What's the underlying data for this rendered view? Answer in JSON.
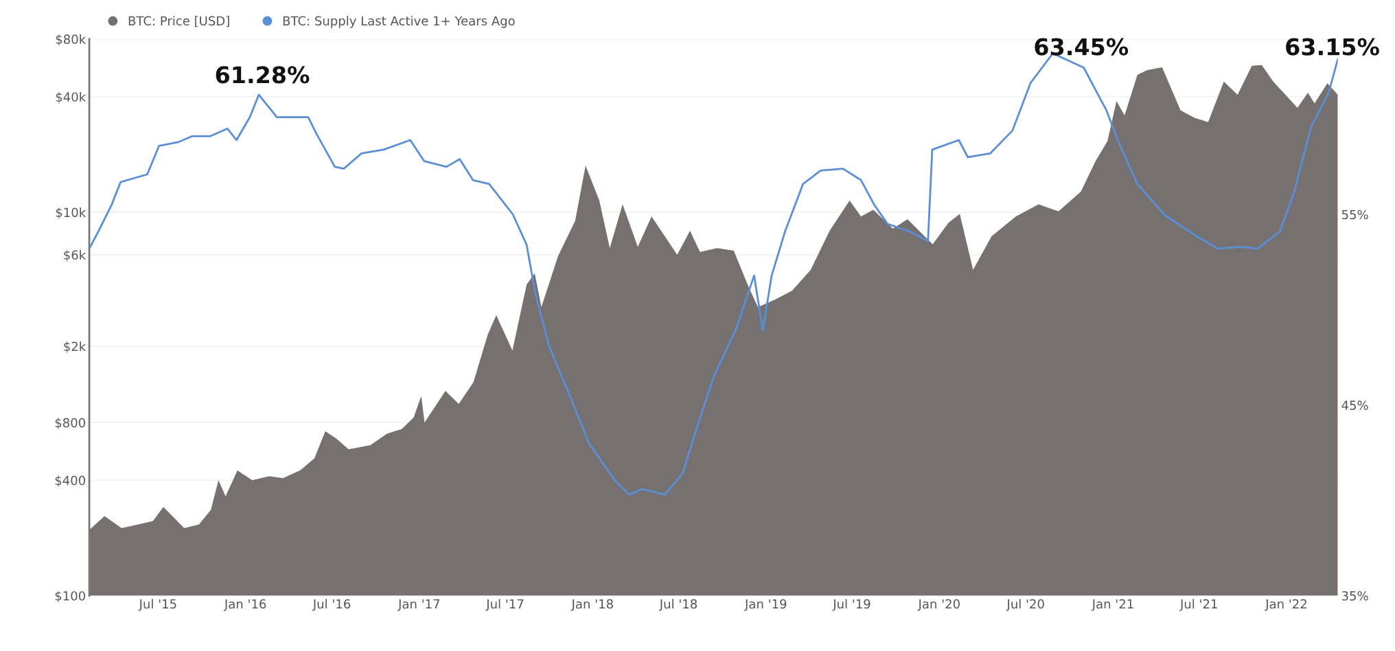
{
  "chart_data": {
    "type": "area",
    "xlim": [
      "2015-02-06",
      "2022-04-19"
    ],
    "xticks": [
      {
        "value": "2015-07-01",
        "label": "Jul '15"
      },
      {
        "value": "2016-01-01",
        "label": "Jan '16"
      },
      {
        "value": "2016-07-01",
        "label": "Jul '16"
      },
      {
        "value": "2017-01-01",
        "label": "Jan '17"
      },
      {
        "value": "2017-07-01",
        "label": "Jul '17"
      },
      {
        "value": "2018-01-01",
        "label": "Jan '18"
      },
      {
        "value": "2018-07-01",
        "label": "Jul '18"
      },
      {
        "value": "2019-01-01",
        "label": "Jan '19"
      },
      {
        "value": "2019-07-01",
        "label": "Jul '19"
      },
      {
        "value": "2020-01-01",
        "label": "Jan '20"
      },
      {
        "value": "2020-07-01",
        "label": "Jul '20"
      },
      {
        "value": "2021-01-01",
        "label": "Jan '21"
      },
      {
        "value": "2021-07-01",
        "label": "Jul '21"
      },
      {
        "value": "2022-01-01",
        "label": "Jan '22"
      }
    ],
    "log": "y",
    "ylim": [
      100,
      80000
    ],
    "yticks": [
      {
        "value": 100,
        "label": "$100"
      },
      {
        "value": 400,
        "label": "$400"
      },
      {
        "value": 800,
        "label": "$800"
      },
      {
        "value": 2000,
        "label": "$2k"
      },
      {
        "value": 6000,
        "label": "$6k"
      },
      {
        "value": 10000,
        "label": "$10k"
      },
      {
        "value": 40000,
        "label": "$40k"
      },
      {
        "value": 80000,
        "label": "$80k"
      }
    ],
    "y2lim": [
      35,
      64.2
    ],
    "y2ticks": [
      {
        "value": 35,
        "label": "35%"
      },
      {
        "value": 45,
        "label": "45%"
      },
      {
        "value": 55,
        "label": "55%"
      }
    ],
    "grid": "y",
    "legend": "top left",
    "series": [
      {
        "name": "BTC: Price [USD]",
        "color": "#767170",
        "x": [
          "2015-02-06",
          "2015-03-10",
          "2015-04-15",
          "2015-05-20",
          "2015-06-20",
          "2015-07-12",
          "2015-08-25",
          "2015-09-25",
          "2015-10-20",
          "2015-11-05",
          "2015-11-20",
          "2015-12-15",
          "2016-01-15",
          "2016-02-20",
          "2016-03-20",
          "2016-04-25",
          "2016-05-25",
          "2016-06-17",
          "2016-07-10",
          "2016-08-05",
          "2016-09-20",
          "2016-10-25",
          "2016-11-25",
          "2016-12-20",
          "2017-01-05",
          "2017-01-12",
          "2017-02-25",
          "2017-03-25",
          "2017-04-25",
          "2017-05-25",
          "2017-06-12",
          "2017-07-16",
          "2017-08-15",
          "2017-09-01",
          "2017-09-15",
          "2017-10-20",
          "2017-11-25",
          "2017-12-17",
          "2018-01-15",
          "2018-02-06",
          "2018-03-05",
          "2018-04-06",
          "2018-05-05",
          "2018-06-28",
          "2018-07-25",
          "2018-08-15",
          "2018-09-20",
          "2018-10-25",
          "2018-11-25",
          "2018-12-15",
          "2019-01-20",
          "2019-02-25",
          "2019-04-05",
          "2019-05-15",
          "2019-06-26",
          "2019-07-20",
          "2019-08-15",
          "2019-09-25",
          "2019-10-26",
          "2019-12-18",
          "2020-01-20",
          "2020-02-13",
          "2020-03-12",
          "2020-04-20",
          "2020-06-10",
          "2020-07-28",
          "2020-09-08",
          "2020-10-25",
          "2020-11-25",
          "2020-12-20",
          "2021-01-08",
          "2021-01-25",
          "2021-02-21",
          "2021-03-13",
          "2021-04-14",
          "2021-05-23",
          "2021-06-22",
          "2021-07-20",
          "2021-08-22",
          "2021-09-20",
          "2021-10-20",
          "2021-11-10",
          "2021-12-04",
          "2022-01-24",
          "2022-02-15",
          "2022-03-01",
          "2022-03-28",
          "2022-04-19"
        ],
        "values": [
          220,
          260,
          225,
          235,
          245,
          290,
          225,
          235,
          280,
          400,
          330,
          450,
          400,
          420,
          410,
          450,
          520,
          720,
          660,
          580,
          610,
          700,
          740,
          850,
          1100,
          800,
          1170,
          1000,
          1300,
          2300,
          2900,
          1900,
          4200,
          4800,
          3200,
          5900,
          9000,
          17500,
          11500,
          6500,
          11000,
          6600,
          9500,
          6000,
          8000,
          6200,
          6500,
          6300,
          4100,
          3200,
          3500,
          3900,
          5000,
          8000,
          11500,
          9500,
          10300,
          8200,
          9200,
          6800,
          8800,
          9800,
          5000,
          7500,
          9500,
          11000,
          10100,
          12800,
          18500,
          23500,
          38000,
          32000,
          52000,
          55000,
          57000,
          34000,
          31000,
          29500,
          48000,
          41000,
          58000,
          58500,
          48000,
          35000,
          42000,
          37000,
          47000,
          41000
        ]
      },
      {
        "name": "BTC: Supply Last Active 1+ Years Ago",
        "type": "line",
        "axis": "y2",
        "color": "#5b8fd5",
        "x": [
          "2015-02-06",
          "2015-02-25",
          "2015-03-25",
          "2015-04-13",
          "2015-05-11",
          "2015-06-08",
          "2015-07-03",
          "2015-08-13",
          "2015-09-10",
          "2015-10-18",
          "2015-11-24",
          "2015-12-13",
          "2016-01-10",
          "2016-01-29",
          "2016-03-07",
          "2016-05-12",
          "2016-05-30",
          "2016-07-07",
          "2016-07-26",
          "2016-09-01",
          "2016-10-18",
          "2016-12-13",
          "2017-01-11",
          "2017-02-27",
          "2017-03-27",
          "2017-04-24",
          "2017-05-28",
          "2017-07-17",
          "2017-08-15",
          "2017-09-02",
          "2017-10-01",
          "2017-11-17",
          "2017-12-24",
          "2018-02-18",
          "2018-03-19",
          "2018-04-16",
          "2018-06-02",
          "2018-07-09",
          "2018-08-16",
          "2018-09-13",
          "2018-10-30",
          "2018-12-07",
          "2018-12-25",
          "2019-01-13",
          "2019-02-10",
          "2019-03-20",
          "2019-04-26",
          "2019-06-12",
          "2019-07-20",
          "2019-08-17",
          "2019-09-14",
          "2019-10-31",
          "2019-12-08",
          "2019-12-17",
          "2020-02-11",
          "2020-03-01",
          "2020-04-17",
          "2020-06-03",
          "2020-07-11",
          "2020-08-27",
          "2020-10-31",
          "2020-12-17",
          "2021-01-14",
          "2021-02-21",
          "2021-04-18",
          "2021-06-23",
          "2021-08-09",
          "2021-09-25",
          "2021-11-01",
          "2021-12-18",
          "2022-01-16",
          "2022-02-22",
          "2022-03-31",
          "2022-04-19"
        ],
        "values": [
          53.2,
          54.1,
          55.5,
          56.7,
          56.9,
          57.1,
          58.6,
          58.8,
          59.1,
          59.1,
          59.5,
          58.9,
          60.1,
          61.28,
          60.1,
          60.1,
          59.2,
          57.5,
          57.4,
          58.2,
          58.4,
          58.9,
          57.8,
          57.5,
          57.9,
          56.8,
          56.6,
          55.0,
          53.4,
          50.9,
          48.1,
          45.3,
          43.0,
          41.0,
          40.3,
          40.6,
          40.3,
          41.4,
          44.4,
          46.5,
          49.0,
          51.8,
          48.9,
          51.8,
          54.1,
          56.6,
          57.3,
          57.4,
          56.8,
          55.5,
          54.5,
          54.1,
          53.6,
          58.4,
          58.9,
          58.0,
          58.2,
          59.4,
          61.9,
          63.45,
          62.7,
          60.5,
          58.7,
          56.6,
          55.0,
          53.9,
          53.2,
          53.3,
          53.2,
          54.1,
          56.1,
          59.6,
          61.4,
          63.15
        ]
      }
    ],
    "annotations": [
      "61.28%",
      "63.45%",
      "63.15%"
    ]
  }
}
